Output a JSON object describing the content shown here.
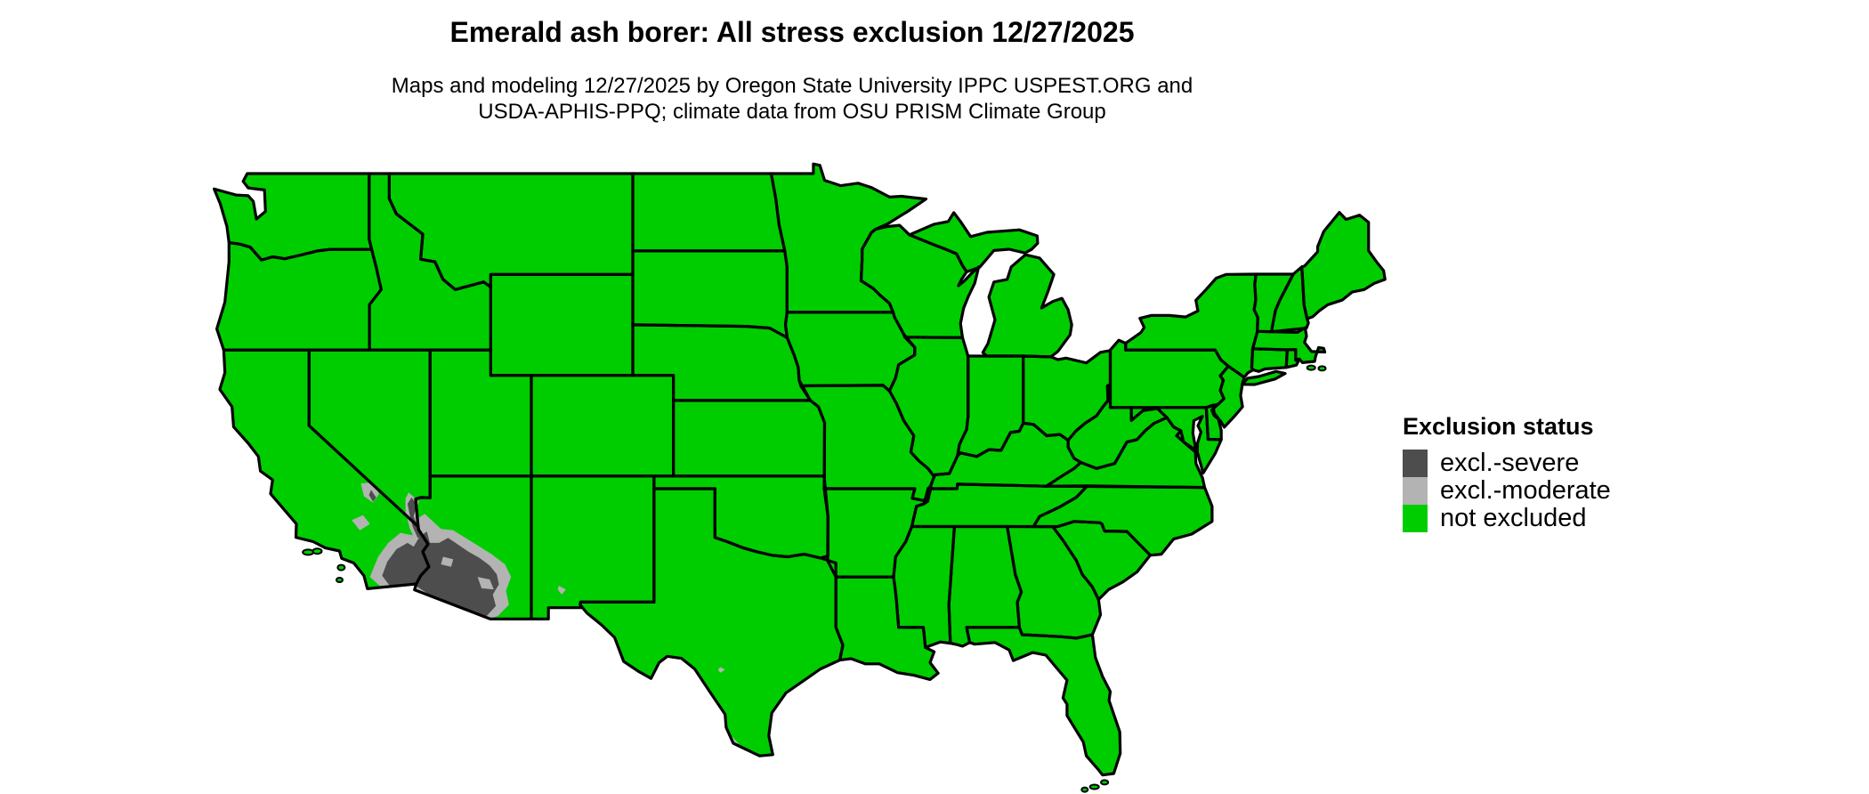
{
  "header": {
    "title": "Emerald ash borer: All stress exclusion 12/27/2025",
    "subtitle_line1": "Maps and modeling 12/27/2025 by Oregon State University IPPC USPEST.ORG and",
    "subtitle_line2": "USDA-APHIS-PPQ; climate data from OSU PRISM Climate Group"
  },
  "legend": {
    "title": "Exclusion status",
    "items": [
      {
        "id": "severe",
        "label": "excl.-severe",
        "color": "#4D4D4D"
      },
      {
        "id": "moderate",
        "label": "excl.-moderate",
        "color": "#B3B3B3"
      },
      {
        "id": "not_excluded",
        "label": "not excluded",
        "color": "#00CD00"
      }
    ]
  },
  "map": {
    "region": "Contiguous United States",
    "background_color": "#FFFFFF",
    "state_border_color": "#000000",
    "status_regions": [
      {
        "status": "excl.-severe",
        "where": "low deserts of southwestern Arizona and southeastern California"
      },
      {
        "status": "excl.-moderate",
        "where": "fringe of the southwest desert region, Death Valley and Mojave areas, a spot in southwestern New Mexico, and along the south Texas Rio Grande border"
      },
      {
        "status": "not excluded",
        "where": "all remaining areas of the contiguous United States"
      }
    ]
  }
}
